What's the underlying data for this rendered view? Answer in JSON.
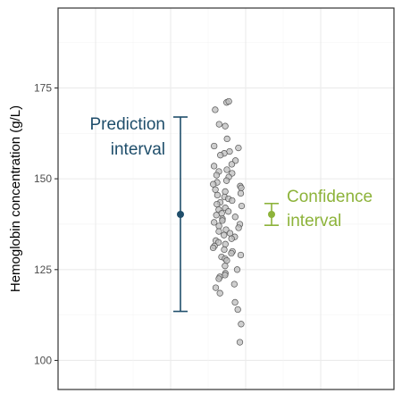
{
  "chart_data": {
    "type": "scatter",
    "title": "",
    "xlabel": "",
    "ylabel": "Hemoglobin concentration (g/L)",
    "ylim": [
      92,
      197
    ],
    "y_ticks": [
      100,
      125,
      150,
      175
    ],
    "grid": true,
    "points_y": [
      171,
      171.3,
      169,
      165,
      164.5,
      161,
      159,
      158.5,
      157.5,
      157,
      156.5,
      155,
      154,
      153.5,
      152.5,
      152,
      151.5,
      151,
      150.5,
      149.5,
      149,
      148.5,
      148,
      147.5,
      147,
      146.5,
      146,
      145.5,
      145,
      144.5,
      144,
      143.5,
      143,
      142.5,
      142,
      141.5,
      141,
      140.5,
      140,
      139.5,
      139,
      138.5,
      138,
      137.5,
      137,
      136.5,
      136,
      135.5,
      135,
      134.5,
      134,
      133.5,
      133,
      132.5,
      132,
      131.5,
      131,
      130.5,
      130,
      129.5,
      129,
      128.5,
      128,
      127.5,
      126,
      125,
      124,
      123.5,
      123,
      122.5,
      121,
      120,
      118.5,
      116,
      114,
      110,
      105
    ],
    "prediction_interval": {
      "label": "Prediction interval",
      "label_lines": [
        "Prediction",
        "interval"
      ],
      "center": 140.2,
      "lower": 113.5,
      "upper": 167,
      "color": "#1f4e6b"
    },
    "confidence_interval": {
      "label": "Confidence interval",
      "label_lines": [
        "Confidence",
        "interval"
      ],
      "center": 140.2,
      "lower": 137.2,
      "upper": 143.2,
      "color": "#8db33a"
    }
  }
}
